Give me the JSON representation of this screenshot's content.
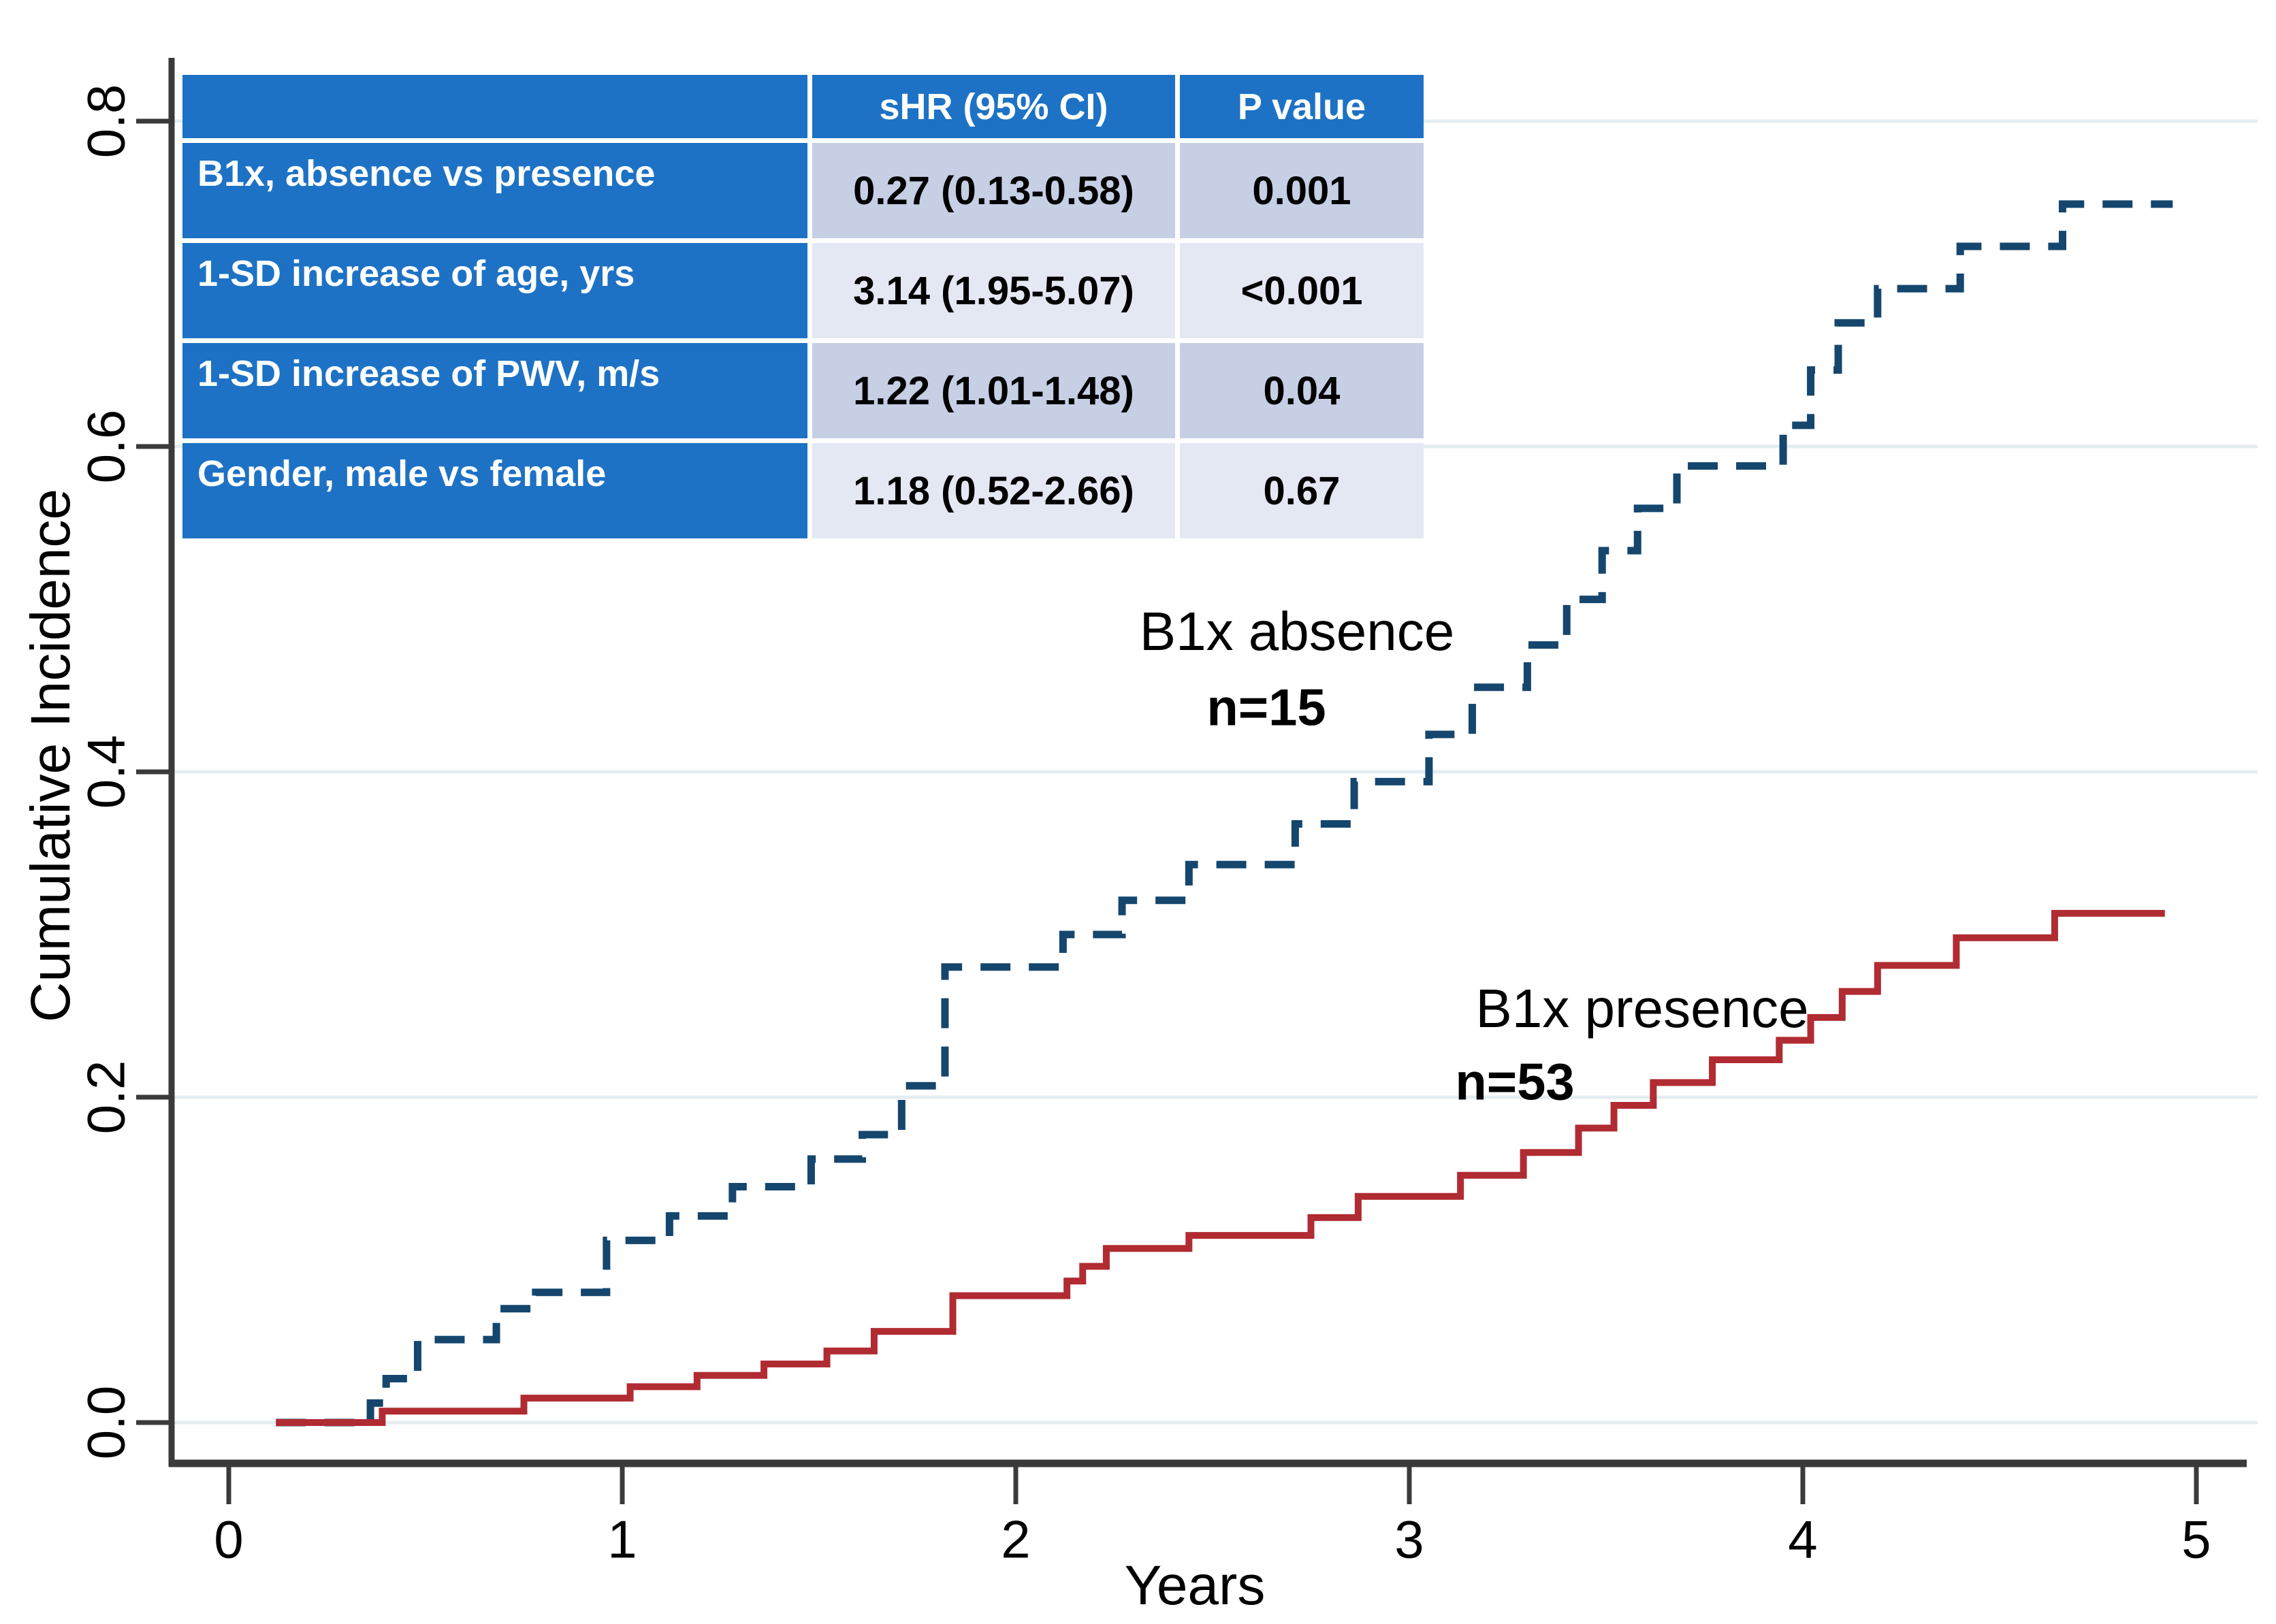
{
  "colors": {
    "absence_curve": "#15466D",
    "presence_curve": "#B12B32",
    "table_blue": "#1D72C5",
    "row_shade_dark": "#C6CFE4",
    "row_shade_light": "#E4E8F3",
    "gridline": "#E3EDF1",
    "axis": "#3A3A3A",
    "text": "#000000"
  },
  "chart_data": {
    "type": "line",
    "subtype": "cumulative-incidence-step",
    "title": "",
    "xlabel": "Years",
    "ylabel": "Cumulative Incidence",
    "xlim": [
      0,
      5
    ],
    "ylim": [
      0,
      0.8
    ],
    "x_ticks": [
      "0",
      "1",
      "2",
      "3",
      "4",
      "5"
    ],
    "y_ticks": [
      "0.0",
      "0.2",
      "0.4",
      "0.6",
      "0.8"
    ],
    "grid": true,
    "legend_position": "inline-annotations",
    "series": [
      {
        "name": "B1x absence",
        "n_label": "n=15",
        "style": "dashed",
        "color": "#15466D",
        "start_t": 0.12,
        "end_t": 4.94,
        "steps": [
          [
            0.36,
            0.012
          ],
          [
            0.4,
            0.027
          ],
          [
            0.48,
            0.051
          ],
          [
            0.68,
            0.07
          ],
          [
            0.78,
            0.08
          ],
          [
            0.96,
            0.112
          ],
          [
            1.12,
            0.127
          ],
          [
            1.28,
            0.145
          ],
          [
            1.48,
            0.162
          ],
          [
            1.61,
            0.177
          ],
          [
            1.71,
            0.207
          ],
          [
            1.82,
            0.28
          ],
          [
            2.12,
            0.3
          ],
          [
            2.27,
            0.321
          ],
          [
            2.44,
            0.343
          ],
          [
            2.71,
            0.368
          ],
          [
            2.86,
            0.394
          ],
          [
            3.05,
            0.423
          ],
          [
            3.16,
            0.452
          ],
          [
            3.3,
            0.478
          ],
          [
            3.4,
            0.506
          ],
          [
            3.49,
            0.536
          ],
          [
            3.58,
            0.562
          ],
          [
            3.68,
            0.588
          ],
          [
            3.95,
            0.613
          ],
          [
            4.02,
            0.647
          ],
          [
            4.09,
            0.676
          ],
          [
            4.19,
            0.697
          ],
          [
            4.4,
            0.723
          ],
          [
            4.66,
            0.749
          ]
        ]
      },
      {
        "name": "B1x presence",
        "n_label": "n=53",
        "style": "solid",
        "color": "#B12B32",
        "start_t": 0.12,
        "end_t": 4.92,
        "steps": [
          [
            0.39,
            0.007
          ],
          [
            0.75,
            0.015
          ],
          [
            1.02,
            0.022
          ],
          [
            1.19,
            0.029
          ],
          [
            1.36,
            0.036
          ],
          [
            1.52,
            0.044
          ],
          [
            1.64,
            0.056
          ],
          [
            1.84,
            0.078
          ],
          [
            2.13,
            0.087
          ],
          [
            2.17,
            0.096
          ],
          [
            2.23,
            0.107
          ],
          [
            2.44,
            0.115
          ],
          [
            2.75,
            0.126
          ],
          [
            2.87,
            0.139
          ],
          [
            3.13,
            0.152
          ],
          [
            3.29,
            0.166
          ],
          [
            3.43,
            0.181
          ],
          [
            3.52,
            0.195
          ],
          [
            3.62,
            0.209
          ],
          [
            3.77,
            0.223
          ],
          [
            3.94,
            0.235
          ],
          [
            4.02,
            0.249
          ],
          [
            4.1,
            0.265
          ],
          [
            4.19,
            0.281
          ],
          [
            4.39,
            0.298
          ],
          [
            4.64,
            0.313
          ]
        ]
      }
    ]
  },
  "table": {
    "headers": [
      "",
      "sHR (95% CI)",
      "P value"
    ],
    "rows": [
      {
        "label": "B1x, absence vs presence",
        "shr": "0.27 (0.13-0.58)",
        "p": "0.001"
      },
      {
        "label": "1-SD increase of age, yrs",
        "shr": "3.14 (1.95-5.07)",
        "p": "<0.001"
      },
      {
        "label": "1-SD increase of PWV, m/s",
        "shr": "1.22 (1.01-1.48)",
        "p": "0.04"
      },
      {
        "label": "Gender, male vs female",
        "shr": "1.18 (0.52-2.66)",
        "p": "0.67"
      }
    ]
  }
}
